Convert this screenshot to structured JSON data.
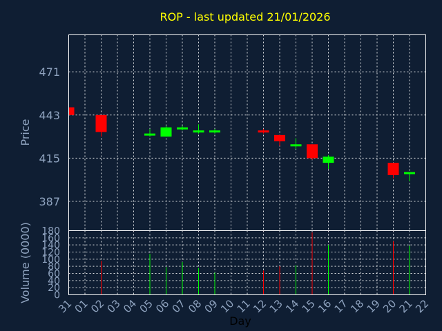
{
  "chart_data": {
    "type": "candlestick",
    "title": "ROP - last updated 21/01/2026",
    "xlabel": "Day",
    "price_panel": {
      "ylabel": "Price",
      "yticks": [
        387,
        415,
        443,
        471
      ],
      "ylim": [
        368,
        495
      ],
      "grid": true
    },
    "volume_panel": {
      "ylabel": "Volume (0000)",
      "yticks": [
        0,
        20,
        40,
        60,
        80,
        100,
        120,
        140,
        160,
        180
      ],
      "ylim": [
        0,
        180
      ],
      "grid": true
    },
    "x_tick_labels": [
      "31",
      "01",
      "02",
      "03",
      "04",
      "05",
      "06",
      "07",
      "08",
      "09",
      "10",
      "11",
      "12",
      "13",
      "14",
      "15",
      "16",
      "17",
      "18",
      "19",
      "20",
      "21",
      "22"
    ],
    "candles": [
      {
        "label": "31",
        "open": 448,
        "high": 448,
        "low": 443,
        "close": 443,
        "volume": 0
      },
      {
        "label": "02",
        "open": 443,
        "high": 443,
        "low": 429,
        "close": 432,
        "volume": 95
      },
      {
        "label": "05",
        "open": 430,
        "high": 434,
        "low": 429,
        "close": 431,
        "volume": 115
      },
      {
        "label": "06",
        "open": 429,
        "high": 436,
        "low": 429,
        "close": 435,
        "volume": 78
      },
      {
        "label": "07",
        "open": 434,
        "high": 436,
        "low": 433,
        "close": 435,
        "volume": 92
      },
      {
        "label": "08",
        "open": 432,
        "high": 437,
        "low": 431,
        "close": 433,
        "volume": 75
      },
      {
        "label": "09",
        "open": 432,
        "high": 434,
        "low": 431,
        "close": 433,
        "volume": 62
      },
      {
        "label": "12",
        "open": 433,
        "high": 434,
        "low": 431,
        "close": 432,
        "volume": 68
      },
      {
        "label": "13",
        "open": 430,
        "high": 430,
        "low": 423,
        "close": 426,
        "volume": 80
      },
      {
        "label": "14",
        "open": 423,
        "high": 428,
        "low": 421,
        "close": 424,
        "volume": 83
      },
      {
        "label": "15",
        "open": 424,
        "high": 424,
        "low": 414,
        "close": 415,
        "volume": 175
      },
      {
        "label": "16",
        "open": 412,
        "high": 417,
        "low": 408,
        "close": 416,
        "volume": 140
      },
      {
        "label": "20",
        "open": 412,
        "high": 412,
        "low": 402,
        "close": 404,
        "volume": 150
      },
      {
        "label": "21",
        "open": 405,
        "high": 406,
        "low": 400,
        "close": 406,
        "volume": 138
      }
    ],
    "colors": {
      "up": "#00ff00",
      "down": "#ff0000",
      "grid": "#ffffff",
      "axis_text": "#8fa3bf",
      "title": "#ffff00",
      "background": "#0f1e33"
    }
  }
}
